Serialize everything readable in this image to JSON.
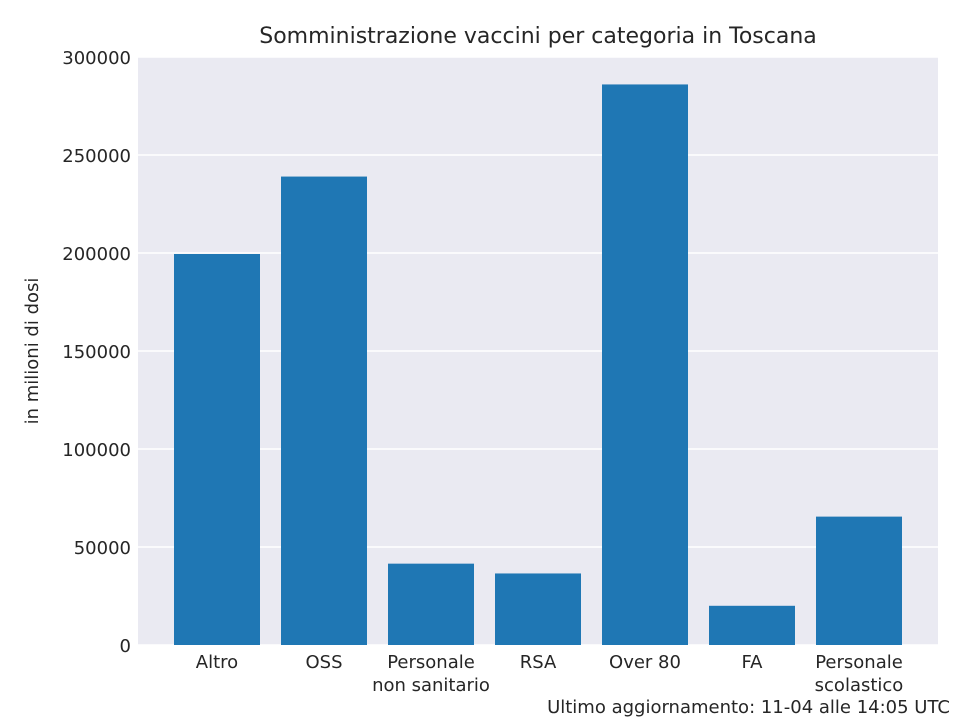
{
  "chart_data": {
    "type": "bar",
    "title": "Somministrazione vaccini per categoria in Toscana",
    "xlabel": "",
    "ylabel": "in milioni di dosi",
    "categories": [
      [
        "Altro"
      ],
      [
        "OSS"
      ],
      [
        "Personale",
        "non sanitario"
      ],
      [
        "RSA"
      ],
      [
        "Over 80"
      ],
      [
        "FA"
      ],
      [
        "Personale",
        "scolastico"
      ]
    ],
    "values": [
      199500,
      239000,
      41500,
      36500,
      286000,
      20000,
      65500
    ],
    "ylim": [
      0,
      300000
    ],
    "yticks": [
      0,
      50000,
      100000,
      150000,
      200000,
      250000,
      300000
    ],
    "grid": true,
    "bar_color": "#1f77b4",
    "background_color": "#eaeaf2"
  },
  "footer": "Ultimo aggiornamento: 11-04 alle 14:05 UTC"
}
